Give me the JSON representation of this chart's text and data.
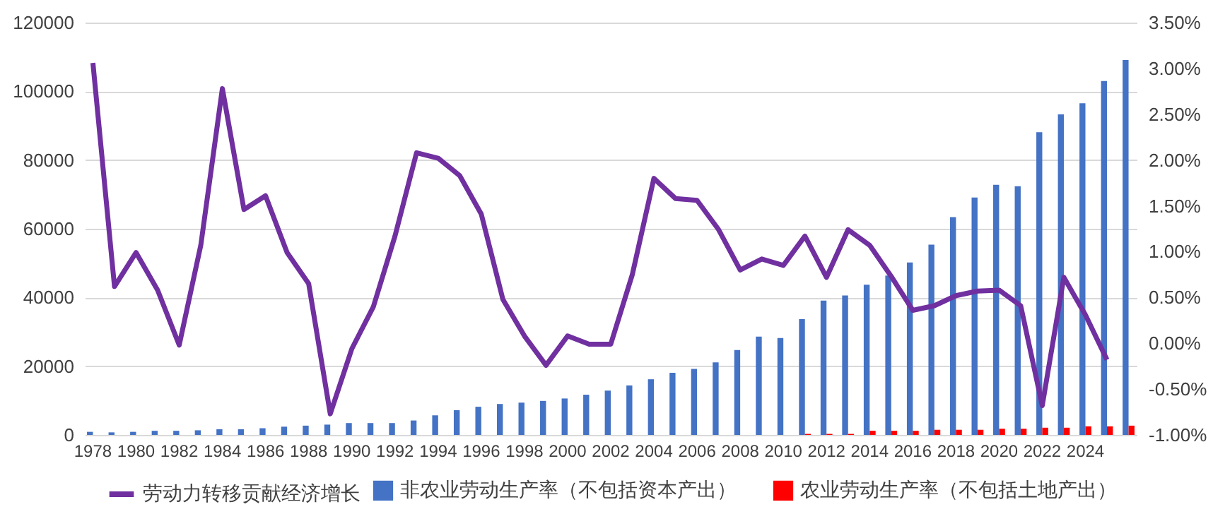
{
  "chart_data": {
    "type": "bar",
    "categories": [
      "1978",
      null,
      "1980",
      null,
      "1982",
      null,
      "1984",
      null,
      "1986",
      null,
      "1988",
      null,
      "1990",
      null,
      "1992",
      null,
      "1994",
      null,
      "1996",
      null,
      "1998",
      null,
      "2000",
      null,
      "2002",
      null,
      "2004",
      null,
      "2006",
      null,
      "2008",
      null,
      "2010",
      null,
      "2012",
      null,
      "2014",
      null,
      "2016",
      null,
      "2018",
      null,
      "2020",
      null,
      "2022",
      null,
      "2024",
      null,
      null
    ],
    "series": [
      {
        "name": "非农业劳动生产率（不包括资本产出）",
        "color": "#4472c4",
        "values": [
          900,
          750,
          900,
          1200,
          1200,
          1350,
          1650,
          1650,
          1950,
          2400,
          2700,
          3000,
          3450,
          3450,
          3450,
          4200,
          5700,
          7200,
          8200,
          9000,
          9400,
          9900,
          10600,
          11700,
          12900,
          14400,
          16200,
          18100,
          19200,
          21100,
          24700,
          28600,
          28200,
          33700,
          39100,
          40600,
          43700,
          46400,
          50200,
          55400,
          63400,
          69100,
          72800,
          72400,
          88100,
          93300,
          96500,
          103000,
          109100
        ]
      },
      {
        "name": "农业劳动生产率（不包括土地产出）",
        "color": "#ff0000",
        "values": [
          null,
          null,
          null,
          null,
          null,
          null,
          null,
          null,
          null,
          null,
          null,
          null,
          null,
          null,
          null,
          null,
          null,
          null,
          null,
          null,
          null,
          null,
          null,
          null,
          null,
          null,
          null,
          null,
          null,
          null,
          null,
          null,
          null,
          300,
          300,
          300,
          1200,
          1200,
          1200,
          1500,
          1500,
          1500,
          1800,
          1800,
          2100,
          2100,
          2500,
          2500,
          2700
        ]
      },
      {
        "name": "劳动力转移贡献经济增长",
        "type": "line",
        "axis": "y2",
        "color": "#7030a0",
        "values": [
          3.06,
          0.62,
          0.99,
          0.58,
          -0.02,
          1.07,
          2.78,
          1.46,
          1.61,
          0.99,
          0.65,
          -0.77,
          -0.06,
          0.4,
          1.17,
          2.08,
          2.02,
          1.83,
          1.41,
          0.48,
          0.08,
          -0.24,
          0.08,
          -0.01,
          -0.01,
          0.75,
          1.8,
          1.58,
          1.56,
          1.24,
          0.8,
          0.92,
          0.85,
          1.17,
          0.72,
          1.24,
          1.07,
          0.73,
          0.36,
          0.41,
          0.52,
          0.57,
          0.58,
          0.41,
          -0.68,
          0.72,
          0.31,
          -0.18,
          null
        ]
      }
    ],
    "ylim": [
      0,
      120000
    ],
    "yticks": [
      0,
      20000,
      40000,
      60000,
      80000,
      100000,
      120000
    ],
    "y2lim": [
      -1,
      3.5
    ],
    "y2ticks": [
      {
        "value": -1,
        "label": "-1.00%"
      },
      {
        "value": -0.5,
        "label": "-0.50%"
      },
      {
        "value": 0,
        "label": "0.00%"
      },
      {
        "value": 0.5,
        "label": "0.50%"
      },
      {
        "value": 1,
        "label": "1.00%"
      },
      {
        "value": 1.5,
        "label": "1.50%"
      },
      {
        "value": 2,
        "label": "2.00%"
      },
      {
        "value": 2.5,
        "label": "2.50%"
      },
      {
        "value": 3,
        "label": "3.00%"
      },
      {
        "value": 3.5,
        "label": "3.50%"
      }
    ],
    "grid": "y",
    "legend": "bottom"
  }
}
